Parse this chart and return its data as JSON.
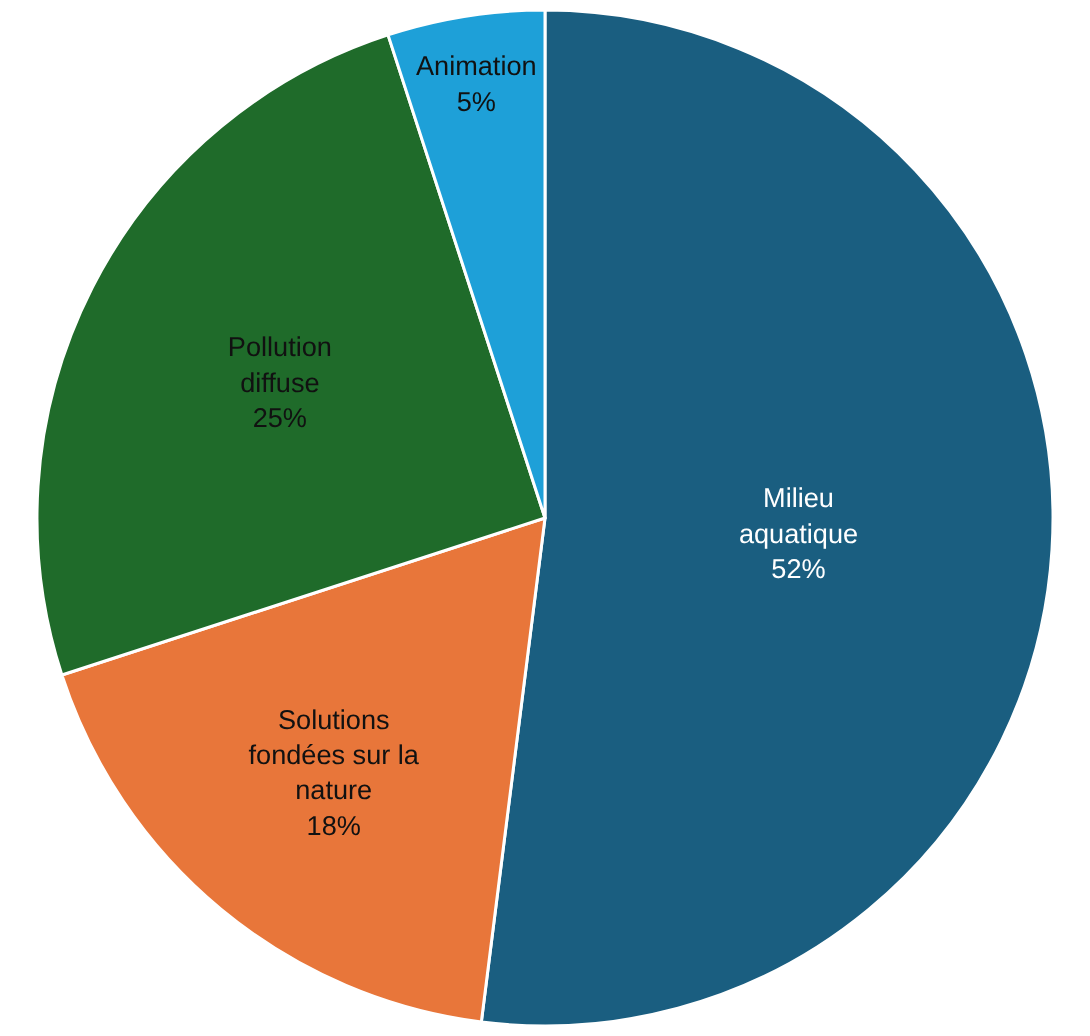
{
  "chart_data": {
    "type": "pie",
    "categories": [
      "Milieu aquatique",
      "Solutions fondées sur la nature",
      "Pollution diffuse",
      "Animation"
    ],
    "values": [
      52,
      18,
      25,
      5
    ],
    "colors": [
      "#1a5e80",
      "#e8763a",
      "#1f6b2a",
      "#1ea0d8"
    ],
    "value_labels": [
      "52%",
      "18%",
      "25%",
      "5%"
    ],
    "legend": false
  }
}
